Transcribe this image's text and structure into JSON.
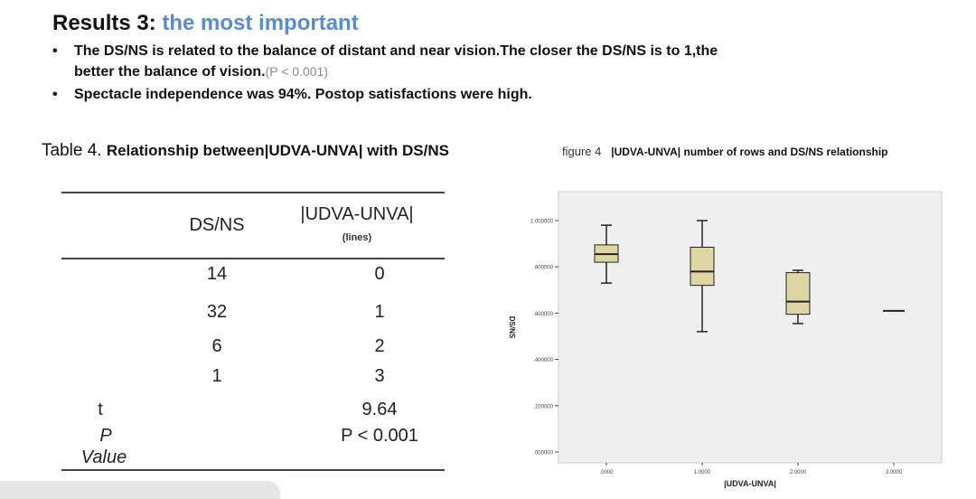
{
  "header": {
    "title_main": "Results 3:",
    "title_accent": "the most important"
  },
  "bullets": [
    {
      "text": "The DS/NS is related to the balance of distant and near vision.The closer the DS/NS  is to 1,the",
      "text2": "better the balance of vision.",
      "note": "(P < 0.001)"
    },
    {
      "text": "Spectacle independence was 94%. Postop satisfactions were high."
    }
  ],
  "table": {
    "caption_prefix": "Table 4.",
    "caption_bold": "Relationship between|UDVA-UNVA| with DS/NS",
    "col1_header": "DS/NS",
    "col2_header": "|UDVA-UNVA|",
    "col2_sub": "(lines)",
    "rows": [
      {
        "dsns": "14",
        "lines": "0"
      },
      {
        "dsns": "32",
        "lines": "1"
      },
      {
        "dsns": "6",
        "lines": "2"
      },
      {
        "dsns": "1",
        "lines": "3"
      }
    ],
    "t_label": "t",
    "t_value": "9.64",
    "p_label": "P",
    "value_label": "Value",
    "p_value": "P < 0.001"
  },
  "figure": {
    "caption_prefix": "figure 4",
    "caption_bold": "|UDVA-UNVA| number of rows and DS/NS relationship"
  },
  "chart_data": {
    "type": "boxplot",
    "xlabel": "|UDVA-UNVA|",
    "ylabel": "DS/NS",
    "ylim": [
      0.0,
      1.0
    ],
    "y_ticks": [
      {
        "value": 0.0,
        "label": ".000000"
      },
      {
        "value": 0.2,
        "label": ".200000"
      },
      {
        "value": 0.4,
        "label": ".400000"
      },
      {
        "value": 0.6,
        "label": ".600000"
      },
      {
        "value": 0.8,
        "label": ".800000"
      },
      {
        "value": 1.0,
        "label": "1.000000"
      }
    ],
    "categories": [
      ".0000",
      "1.0000",
      "2.0000",
      "3.0000"
    ],
    "boxes": [
      {
        "category": ".0000",
        "min": 0.73,
        "q1": 0.82,
        "median": 0.855,
        "q3": 0.895,
        "max": 0.98
      },
      {
        "category": "1.0000",
        "min": 0.52,
        "q1": 0.72,
        "median": 0.78,
        "q3": 0.885,
        "max": 1.0
      },
      {
        "category": "2.0000",
        "min": 0.555,
        "q1": 0.595,
        "median": 0.65,
        "q3": 0.775,
        "max": 0.785
      },
      {
        "category": "3.0000",
        "min": 0.61,
        "q1": 0.61,
        "median": 0.61,
        "q3": 0.61,
        "max": 0.61
      }
    ],
    "colors": {
      "box_fill": "#ddd5a3",
      "plot_bg": "#efefef",
      "stroke": "#222222"
    }
  }
}
